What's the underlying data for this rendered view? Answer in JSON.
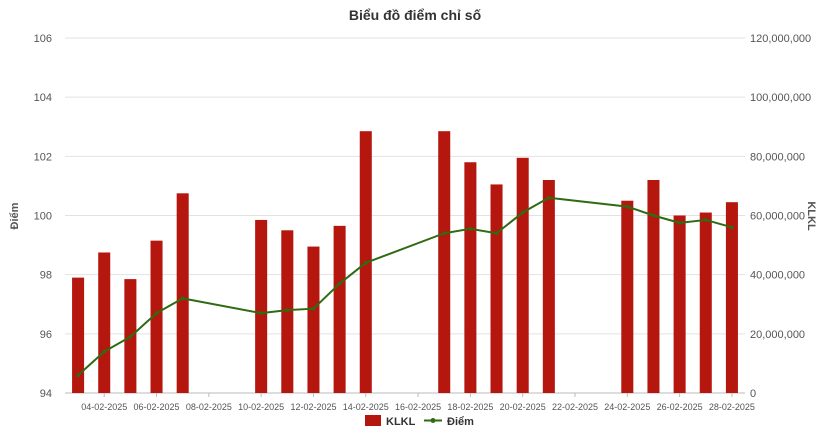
{
  "chart_data": {
    "type": "bar+line",
    "title": "Biểu đồ điểm chỉ số",
    "y_left_label": "Điểm",
    "y_right_label": "KLKL",
    "y_left_range": [
      94,
      106
    ],
    "y_left_ticks": [
      "94",
      "96",
      "98",
      "100",
      "102",
      "104",
      "106"
    ],
    "y_right_range": [
      0,
      120000000
    ],
    "y_right_ticks": [
      "0",
      "20,000,000",
      "40,000,000",
      "60,000,000",
      "80,000,000",
      "100,000,000",
      "120,000,000"
    ],
    "x_start": "03-02-2025",
    "x_end": "28-02-2025",
    "x_tick_labels": [
      "04-02-2025",
      "06-02-2025",
      "08-02-2025",
      "10-02-2025",
      "12-02-2025",
      "14-02-2025",
      "16-02-2025",
      "18-02-2025",
      "20-02-2025",
      "22-02-2025",
      "24-02-2025",
      "26-02-2025",
      "28-02-2025"
    ],
    "legend_placement": "bottom",
    "grid": true,
    "colors": {
      "bars": "#b5170f",
      "line": "#2e6b12",
      "grid": "#e2e2e2"
    },
    "series": [
      {
        "name": "KLKL",
        "kind": "bar",
        "axis": "right",
        "points": [
          [
            "03-02-2025",
            39000000
          ],
          [
            "04-02-2025",
            47500000
          ],
          [
            "05-02-2025",
            38500000
          ],
          [
            "06-02-2025",
            51500000
          ],
          [
            "07-02-2025",
            67500000
          ],
          [
            "10-02-2025",
            58500000
          ],
          [
            "11-02-2025",
            55000000
          ],
          [
            "12-02-2025",
            49500000
          ],
          [
            "13-02-2025",
            56500000
          ],
          [
            "14-02-2025",
            88500000
          ],
          [
            "17-02-2025",
            88500000
          ],
          [
            "18-02-2025",
            78000000
          ],
          [
            "19-02-2025",
            70500000
          ],
          [
            "20-02-2025",
            79500000
          ],
          [
            "21-02-2025",
            72000000
          ],
          [
            "24-02-2025",
            65000000
          ],
          [
            "25-02-2025",
            72000000
          ],
          [
            "26-02-2025",
            60000000
          ],
          [
            "27-02-2025",
            61000000
          ],
          [
            "28-02-2025",
            64500000
          ]
        ]
      },
      {
        "name": "Điểm",
        "kind": "line",
        "axis": "left",
        "points": [
          [
            "03-02-2025",
            94.6
          ],
          [
            "04-02-2025",
            95.4
          ],
          [
            "05-02-2025",
            95.9
          ],
          [
            "06-02-2025",
            96.7
          ],
          [
            "07-02-2025",
            97.2
          ],
          [
            "10-02-2025",
            96.7
          ],
          [
            "11-02-2025",
            96.8
          ],
          [
            "12-02-2025",
            96.85
          ],
          [
            "13-02-2025",
            97.7
          ],
          [
            "14-02-2025",
            98.4
          ],
          [
            "17-02-2025",
            99.4
          ],
          [
            "18-02-2025",
            99.55
          ],
          [
            "19-02-2025",
            99.4
          ],
          [
            "20-02-2025",
            100.1
          ],
          [
            "21-02-2025",
            100.6
          ],
          [
            "24-02-2025",
            100.3
          ],
          [
            "25-02-2025",
            100.0
          ],
          [
            "26-02-2025",
            99.75
          ],
          [
            "27-02-2025",
            99.85
          ],
          [
            "28-02-2025",
            99.6
          ]
        ]
      }
    ]
  }
}
